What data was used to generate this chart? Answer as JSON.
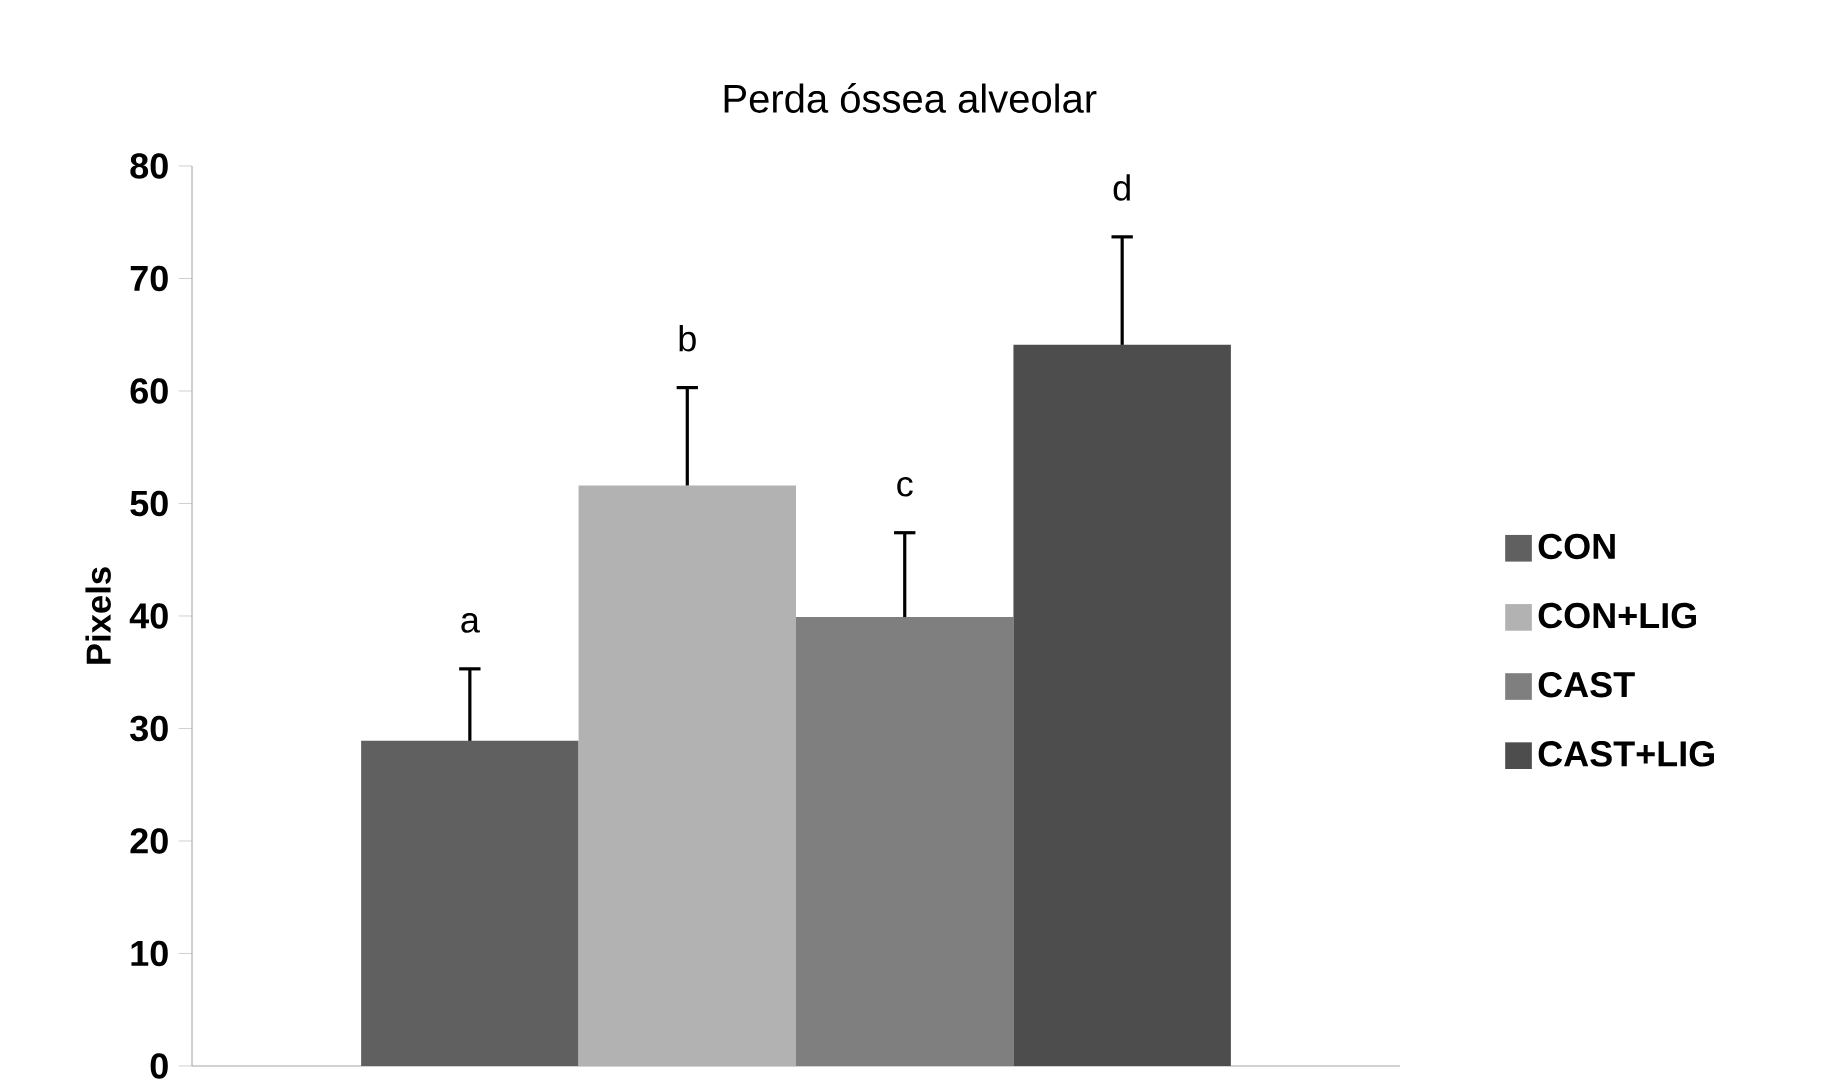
{
  "chart_data": {
    "type": "bar",
    "title": "Perda óssea alveolar",
    "ylabel": "Pixels",
    "categories": [
      null
    ],
    "series": [
      {
        "name": "CON",
        "color": "#606060",
        "values": [
          28.9
        ],
        "errors": [
          [
            28.9,
            35.3
          ]
        ]
      },
      {
        "name": "CON+LIG",
        "color": "#b2b2b2",
        "values": [
          51.6
        ],
        "errors": [
          [
            51.6,
            60.3
          ]
        ]
      },
      {
        "name": "CAST",
        "color": "#7f7f7f",
        "values": [
          39.9
        ],
        "errors": [
          [
            39.9,
            47.4
          ]
        ]
      },
      {
        "name": "CAST+LIG",
        "color": "#4d4d4d",
        "values": [
          64.1
        ],
        "errors": [
          [
            64.1,
            73.7
          ]
        ]
      }
    ],
    "annotations": [
      "a",
      "b",
      "c",
      "d"
    ],
    "ylim": [
      0,
      80
    ],
    "yticks": [
      0,
      10,
      20,
      30,
      40,
      50,
      60,
      70,
      80
    ],
    "grid": false,
    "legend": "right"
  }
}
